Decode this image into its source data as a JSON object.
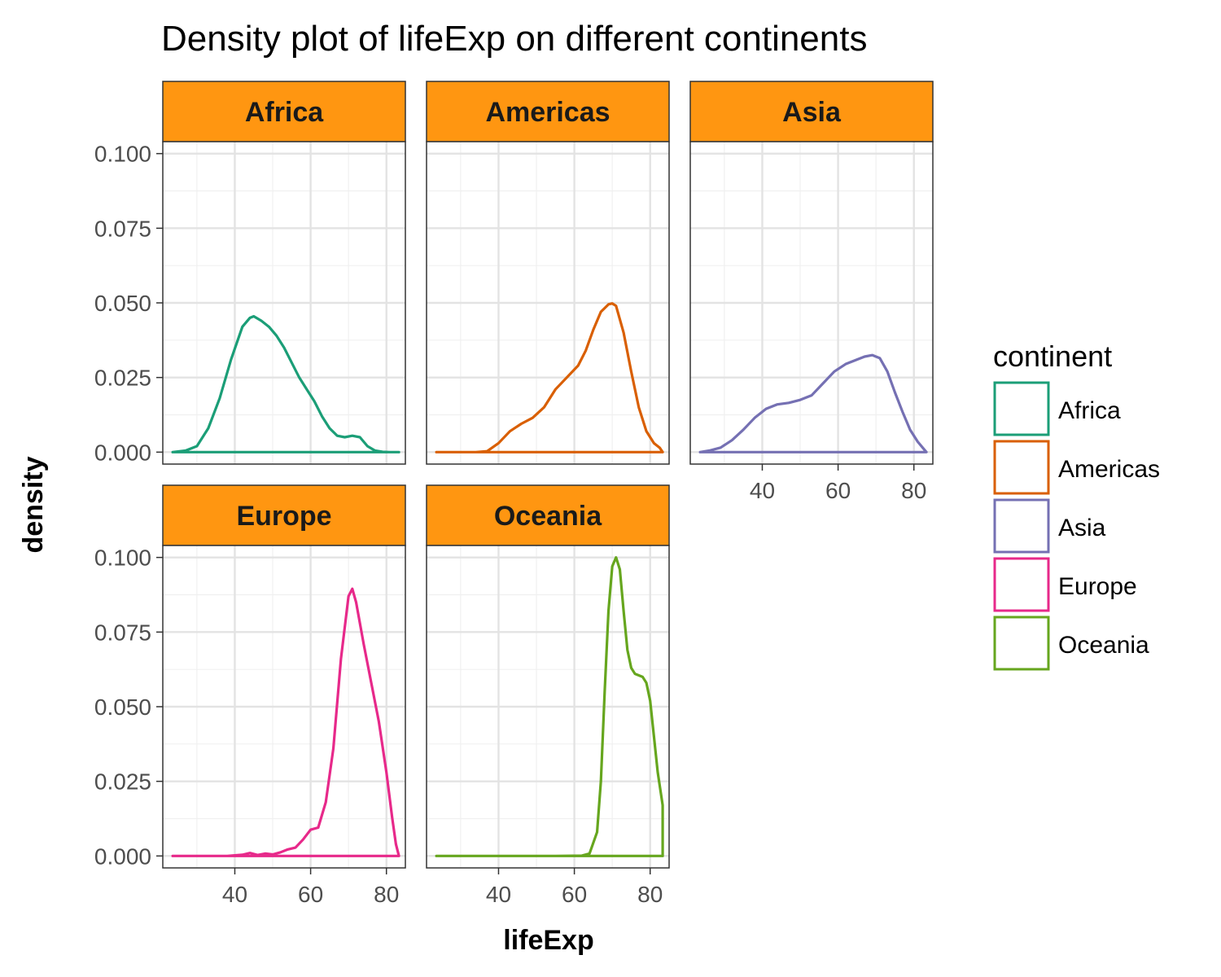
{
  "chart_data": {
    "type": "area",
    "title": "Density plot of lifeExp on different continents",
    "xlabel": "lifeExp",
    "ylabel": "density",
    "xlim": [
      21,
      85
    ],
    "ylim": [
      -0.004,
      0.104
    ],
    "x_ticks": [
      40,
      60,
      80
    ],
    "y_ticks": [
      0.0,
      0.025,
      0.05,
      0.075,
      0.1
    ],
    "y_tick_labels": [
      "0.000",
      "0.025",
      "0.050",
      "0.075",
      "0.100"
    ],
    "grid": true,
    "legend": {
      "title": "continent",
      "position": "right"
    },
    "strip_fill": "#FF9611",
    "facets": [
      {
        "name": "Africa",
        "color": "#1B9E77",
        "x": [
          23.6,
          27,
          30,
          33,
          36,
          39,
          42,
          44,
          45,
          47,
          49,
          51,
          53,
          55,
          57,
          59,
          61,
          63,
          65,
          67,
          69,
          71,
          73,
          75,
          77,
          79,
          81,
          83.3
        ],
        "y": [
          0.0,
          0.0005,
          0.002,
          0.008,
          0.018,
          0.031,
          0.042,
          0.045,
          0.0455,
          0.044,
          0.042,
          0.039,
          0.035,
          0.03,
          0.025,
          0.021,
          0.017,
          0.012,
          0.008,
          0.0055,
          0.005,
          0.0055,
          0.005,
          0.002,
          0.0005,
          0.0001,
          0.0,
          0.0
        ]
      },
      {
        "name": "Americas",
        "color": "#D95F02",
        "x": [
          23.6,
          26,
          30,
          34,
          37,
          40,
          43,
          46,
          49,
          52,
          55,
          58,
          61,
          63,
          65,
          67,
          69,
          70,
          71,
          73,
          75,
          77,
          79,
          81,
          82.5,
          83.3
        ],
        "y": [
          0.0,
          0.0,
          0.0,
          0.0,
          0.0003,
          0.003,
          0.007,
          0.0095,
          0.0115,
          0.015,
          0.021,
          0.025,
          0.029,
          0.034,
          0.041,
          0.047,
          0.0495,
          0.0498,
          0.049,
          0.04,
          0.027,
          0.015,
          0.007,
          0.003,
          0.0015,
          0.0
        ]
      },
      {
        "name": "Asia",
        "color": "#7570B3",
        "x": [
          23.6,
          26,
          29,
          32,
          35,
          38,
          41,
          44,
          47,
          50,
          53,
          56,
          59,
          62,
          65,
          67,
          69,
          71,
          73,
          75,
          77,
          79,
          81,
          83.3
        ],
        "y": [
          0.0,
          0.0005,
          0.0015,
          0.004,
          0.0075,
          0.0115,
          0.0145,
          0.016,
          0.0165,
          0.0175,
          0.019,
          0.023,
          0.027,
          0.0295,
          0.031,
          0.032,
          0.0325,
          0.0315,
          0.027,
          0.02,
          0.0135,
          0.0075,
          0.0035,
          0.0
        ]
      },
      {
        "name": "Europe",
        "color": "#E7298A",
        "x": [
          23.6,
          30,
          38,
          42,
          44,
          46,
          48,
          50,
          52,
          54,
          56,
          58,
          60,
          62,
          64,
          66,
          68,
          70,
          71,
          72,
          74,
          76,
          78,
          80,
          81.5,
          82.5,
          83.3
        ],
        "y": [
          0.0,
          0.0,
          0.0,
          0.0004,
          0.001,
          0.0003,
          0.0008,
          0.0005,
          0.0012,
          0.0022,
          0.0028,
          0.0055,
          0.0088,
          0.0095,
          0.018,
          0.036,
          0.066,
          0.087,
          0.0895,
          0.085,
          0.071,
          0.058,
          0.045,
          0.028,
          0.013,
          0.004,
          0.0
        ]
      },
      {
        "name": "Oceania",
        "color": "#66A61E",
        "x": [
          23.6,
          40,
          55,
          62,
          64,
          66,
          67,
          68,
          69,
          70,
          71,
          72,
          73,
          74,
          75,
          76,
          77,
          78,
          79,
          80,
          81,
          82,
          83.3
        ],
        "y": [
          0.0,
          0.0,
          0.0,
          0.0001,
          0.0008,
          0.008,
          0.025,
          0.055,
          0.082,
          0.097,
          0.1,
          0.096,
          0.082,
          0.069,
          0.063,
          0.061,
          0.0605,
          0.06,
          0.058,
          0.052,
          0.04,
          0.028,
          0.017
        ]
      }
    ]
  }
}
